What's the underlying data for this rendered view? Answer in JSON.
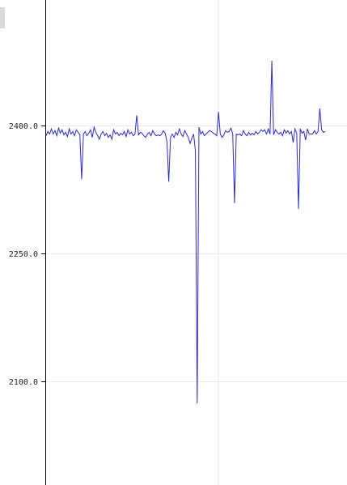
{
  "chart_data": {
    "type": "line",
    "title": "",
    "xlabel": "",
    "ylabel": "",
    "ylim": [
      2030,
      2540
    ],
    "y_ticks": [
      {
        "value": 2400,
        "label": "2400.0"
      },
      {
        "value": 2250,
        "label": "2250.0"
      },
      {
        "value": 2100,
        "label": "2100.0"
      }
    ],
    "grid": true,
    "colors": {
      "line": "#2a2ad6",
      "grid": "#ebebeb",
      "axis": "#000000"
    },
    "series": [
      {
        "values": [
          2388,
          2393,
          2390,
          2396,
          2390,
          2394,
          2388,
          2397,
          2391,
          2395,
          2389,
          2392,
          2387,
          2396,
          2390,
          2393,
          2388,
          2395,
          2392,
          2389,
          2337,
          2390,
          2393,
          2388,
          2391,
          2395,
          2386,
          2398,
          2392,
          2388,
          2384,
          2390,
          2393,
          2388,
          2391,
          2386,
          2389,
          2384,
          2395,
          2390,
          2392,
          2388,
          2391,
          2389,
          2393,
          2387,
          2395,
          2390,
          2392,
          2388,
          2390,
          2412,
          2389,
          2392,
          2391,
          2388,
          2386,
          2390,
          2392,
          2388,
          2394,
          2390,
          2388,
          2389,
          2388,
          2390,
          2394,
          2391,
          2381,
          2334,
          2386,
          2390,
          2386,
          2392,
          2389,
          2396,
          2390,
          2387,
          2394,
          2390,
          2386,
          2379,
          2385,
          2390,
          2370,
          2074,
          2398,
          2390,
          2393,
          2388,
          2390,
          2392,
          2394,
          2393,
          2391,
          2390,
          2388,
          2416,
          2390,
          2386,
          2389,
          2394,
          2392,
          2393,
          2397,
          2390,
          2309,
          2390,
          2389,
          2390,
          2388,
          2394,
          2390,
          2388,
          2392,
          2389,
          2391,
          2389,
          2393,
          2390,
          2392,
          2395,
          2393,
          2395,
          2390,
          2396,
          2390,
          2476,
          2389,
          2395,
          2392,
          2390,
          2392,
          2388,
          2395,
          2391,
          2394,
          2390,
          2393,
          2380,
          2396,
          2391,
          2302,
          2396,
          2391,
          2393,
          2383,
          2396,
          2390,
          2390,
          2390,
          2394,
          2390,
          2393,
          2420,
          2395,
          2392,
          2393
        ]
      }
    ]
  }
}
